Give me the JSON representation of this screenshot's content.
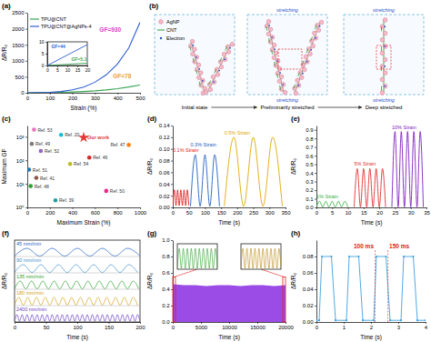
{
  "chart_data": [
    {
      "type": "line",
      "title": "(a)",
      "x_label": "Strain (%)",
      "y_label": "ΔR/R₀",
      "xlim": [
        0,
        500
      ],
      "ylim": [
        0,
        2500
      ],
      "xticks": [
        0,
        100,
        200,
        300,
        400,
        500
      ],
      "yticks": [
        0,
        500,
        1000,
        1500,
        2000,
        2500
      ],
      "legend": "upper left",
      "series": [
        {
          "name": "TPU@CNT",
          "color": "#3aa655",
          "x": [
            0,
            50,
            100,
            150,
            200,
            250,
            300,
            350,
            400,
            450,
            500
          ],
          "values": [
            0,
            3,
            8,
            15,
            25,
            40,
            60,
            90,
            130,
            180,
            240
          ]
        },
        {
          "name": "TPU@CNT@AgNPs-4",
          "color": "#2f5fd0",
          "x": [
            0,
            50,
            100,
            150,
            200,
            250,
            300,
            350,
            400,
            450,
            500
          ],
          "values": [
            0,
            5,
            15,
            40,
            90,
            180,
            330,
            560,
            900,
            1400,
            2200
          ]
        }
      ],
      "annotations": [
        {
          "text": "GF=930",
          "x": 320,
          "y": 1900,
          "color": "#e040c8"
        },
        {
          "text": "GF=78",
          "x": 380,
          "y": 450,
          "color": "#f0a030"
        }
      ]
    },
    {
      "type": "line",
      "xlim": [
        0,
        20
      ],
      "ylim": [
        0,
        10
      ],
      "xticks": [
        0,
        5,
        10,
        15,
        20
      ],
      "yticks": [
        0,
        5,
        10
      ],
      "series": [
        {
          "color": "#3aa655",
          "x": [
            0,
            5,
            10,
            15,
            20
          ],
          "values": [
            0,
            0.26,
            0.51,
            0.77,
            1.02
          ]
        },
        {
          "color": "#2f5fd0",
          "x": [
            0,
            5,
            10,
            15,
            20
          ],
          "values": [
            0,
            2.2,
            4.4,
            6.6,
            8.8
          ]
        }
      ],
      "annotations": [
        {
          "text": "GF=44",
          "x": 2,
          "y": 7.5,
          "color": "#2f5fd0"
        },
        {
          "text": "GF=5.1",
          "x": 12,
          "y": 1.8,
          "color": "#3aa655"
        }
      ]
    },
    {
      "type": "scatter",
      "title": "(c)",
      "x_label": "Maximum Strain (%)",
      "y_label": "Maximum GF",
      "log": "y",
      "xlim": [
        0,
        1000
      ],
      "ylim": [
        1,
        3000
      ],
      "xticks": [
        0,
        200,
        400,
        600,
        800,
        1000
      ],
      "yticks": [
        {
          "value": 1,
          "label": "10⁰"
        },
        {
          "value": 10,
          "label": "10¹"
        },
        {
          "value": 100,
          "label": "10²"
        },
        {
          "value": 1000,
          "label": "10³"
        }
      ],
      "series": [
        {
          "marker": "circle",
          "x": [
            60,
            300,
            40,
            120,
            900,
            550,
            380,
            15,
            80,
            30,
            700,
            250
          ],
          "values": [
            2000,
            1200,
            500,
            250,
            450,
            130,
            70,
            40,
            18,
            8,
            5,
            2
          ],
          "labels": [
            "Ref. 53",
            "Ref. 20",
            "Ref. 49",
            "Ref. 52",
            "Ref. 47",
            "Ref. 46",
            "Ref. 54",
            "Ref. 51",
            "Ref. 41",
            "Ref. 48",
            "Ref. 50",
            "Ref. 39"
          ],
          "colors": [
            "#e377c2",
            "#17becf",
            "#7f7f7f",
            "#9467bd",
            "#ff7f0e",
            "#d62728",
            "#bcbd22",
            "#1f77b4",
            "#8c564b",
            "#2ca02c",
            "#e7298a",
            "#20a0a0"
          ]
        },
        {
          "marker": "star",
          "color": "#e53935",
          "x": [
            500
          ],
          "values": [
            930
          ],
          "labels": [
            "Our work"
          ]
        }
      ]
    },
    {
      "type": "line",
      "title": "(d)",
      "x_label": "Time (s)",
      "y_label": "ΔR/R₀",
      "xlim": [
        0,
        350
      ],
      "ylim": [
        0,
        0.14
      ],
      "xticks": [
        0,
        50,
        100,
        150,
        200,
        250,
        300,
        350
      ],
      "yticks": [
        {
          "value": 0,
          "label": "0.00"
        },
        {
          "value": 0.02,
          "label": "0.02"
        },
        {
          "value": 0.04,
          "label": "0.04"
        },
        {
          "value": 0.06,
          "label": "0.06"
        },
        {
          "value": 0.08,
          "label": "0.08"
        },
        {
          "value": 0.1,
          "label": "0.10"
        },
        {
          "value": 0.12,
          "label": "0.12"
        },
        {
          "value": 0.14,
          "label": "0.14"
        }
      ],
      "series": [
        {
          "name": "0.1% Strain",
          "color": "#e02020",
          "x": [
            0,
            5,
            10,
            15,
            20,
            25,
            30,
            35,
            40,
            45,
            50
          ],
          "values": [
            0.003,
            0.03,
            0.003,
            0.03,
            0.003,
            0.03,
            0.003,
            0.03,
            0.003,
            0.03,
            0.003
          ]
        },
        {
          "name": "0.3% Strain",
          "color": "#2060c0",
          "x": [
            55,
            70,
            85,
            100,
            115,
            130,
            145
          ],
          "values": [
            0.002,
            0.09,
            0.002,
            0.09,
            0.002,
            0.09,
            0.002
          ]
        },
        {
          "name": "0.5% Strain",
          "color": "#e0a800",
          "x": [
            160,
            190,
            220,
            250,
            280,
            310,
            340
          ],
          "values": [
            0.002,
            0.12,
            0.002,
            0.12,
            0.002,
            0.12,
            0.002
          ]
        }
      ]
    },
    {
      "type": "line",
      "title": "(e)",
      "x_label": "Time (s)",
      "y_label": "ΔR/R₀",
      "xlim": [
        0,
        35
      ],
      "ylim": [
        0,
        0.95
      ],
      "xticks": [
        0,
        5,
        10,
        15,
        20,
        25,
        30,
        35
      ],
      "yticks": [
        {
          "value": 0,
          "label": "0.0"
        },
        0.1,
        0.2,
        0.3,
        0.4,
        0.5,
        0.6,
        0.7,
        0.8,
        0.9
      ],
      "series": [
        {
          "name": "1% Strain",
          "color": "#30b040",
          "x": [
            0,
            1,
            2,
            3,
            4,
            5,
            6,
            7,
            8,
            9,
            10
          ],
          "values": [
            0.005,
            0.07,
            0.005,
            0.07,
            0.005,
            0.07,
            0.005,
            0.07,
            0.005,
            0.07,
            0.005
          ]
        },
        {
          "name": "5% Strain",
          "color": "#e03030",
          "x": [
            12,
            13,
            14,
            15,
            16,
            17,
            18,
            19,
            20,
            21,
            22
          ],
          "values": [
            0.005,
            0.45,
            0.005,
            0.45,
            0.005,
            0.45,
            0.005,
            0.45,
            0.005,
            0.45,
            0.005
          ]
        },
        {
          "name": "10% Strain",
          "color": "#8020c0",
          "x": [
            24,
            25,
            26,
            27,
            28,
            29,
            30,
            31,
            32,
            33,
            34
          ],
          "values": [
            0.005,
            0.88,
            0.005,
            0.88,
            0.005,
            0.88,
            0.005,
            0.88,
            0.005,
            0.88,
            0.005
          ]
        }
      ]
    },
    {
      "type": "line",
      "title": "(f)",
      "x_label": "Time (s)",
      "y_label": "ΔR/R₀",
      "xlim": [
        0,
        200
      ],
      "ylim": [
        0,
        0.2
      ],
      "xticks": [
        0,
        50,
        100,
        150,
        200
      ],
      "tick_labels": "x",
      "series": [
        {
          "name": "45 mm/min",
          "color": "#1f5fbf",
          "x": [
            0,
            20,
            40,
            60,
            80,
            100,
            120,
            140,
            160,
            180,
            200
          ],
          "values": [
            0.005,
            0.1,
            0.005,
            0.1,
            0.005,
            0.1,
            0.005,
            0.1,
            0.005,
            0.1,
            0.005
          ]
        },
        {
          "name": "90 mm/min",
          "color": "#3a8fd0",
          "x": [
            0,
            14,
            28,
            42,
            56,
            70,
            84,
            98,
            112,
            126,
            140,
            154,
            168,
            182,
            196
          ],
          "values": [
            0.005,
            0.1,
            0.005,
            0.1,
            0.005,
            0.1,
            0.005,
            0.1,
            0.005,
            0.1,
            0.005,
            0.1,
            0.005,
            0.1,
            0.005
          ]
        },
        {
          "name": "135 mm/min",
          "color": "#2ca02c",
          "x": [
            0,
            9,
            18,
            27,
            36,
            45,
            54,
            63,
            72,
            81,
            90,
            99,
            108,
            117,
            126,
            135,
            144,
            153,
            162,
            171,
            180,
            189,
            198
          ],
          "values": [
            0.005,
            0.1,
            0.005,
            0.1,
            0.005,
            0.1,
            0.005,
            0.1,
            0.005,
            0.1,
            0.005,
            0.1,
            0.005,
            0.1,
            0.005,
            0.1,
            0.005,
            0.1,
            0.005,
            0.1,
            0.005,
            0.1,
            0.005
          ]
        },
        {
          "name": "180 mm/min",
          "color": "#d4a017",
          "x": [
            0,
            7,
            14,
            21,
            28,
            35,
            42,
            49,
            56,
            63,
            70,
            77,
            84,
            91,
            98,
            105,
            112,
            119,
            126,
            133,
            140,
            147,
            154,
            161,
            168,
            175,
            182,
            189,
            196
          ],
          "values": [
            0.005,
            0.1,
            0.005,
            0.1,
            0.005,
            0.1,
            0.005,
            0.1,
            0.005,
            0.1,
            0.005,
            0.1,
            0.005,
            0.1,
            0.005,
            0.1,
            0.005,
            0.1,
            0.005,
            0.1,
            0.005,
            0.1,
            0.005,
            0.1,
            0.005,
            0.1,
            0.005,
            0.1,
            0.005
          ]
        },
        {
          "name": "2400 mm/min",
          "color": "#6a3fc0",
          "x": [
            0,
            4,
            8,
            12,
            16,
            20,
            24,
            28,
            32,
            36,
            40,
            44,
            48,
            52,
            56,
            60,
            64,
            68,
            72,
            76,
            80,
            84,
            88,
            92,
            96,
            100,
            104,
            108,
            112,
            116,
            120,
            124,
            128,
            132,
            136,
            140,
            144,
            148,
            152,
            156,
            160,
            164,
            168,
            172,
            176,
            180,
            184,
            188,
            192,
            196,
            200
          ],
          "values": [
            0.01,
            0.09,
            0.01,
            0.09,
            0.01,
            0.09,
            0.01,
            0.09,
            0.01,
            0.09,
            0.01,
            0.09,
            0.01,
            0.09,
            0.01,
            0.09,
            0.01,
            0.09,
            0.01,
            0.09,
            0.01,
            0.09,
            0.01,
            0.09,
            0.01,
            0.09,
            0.01,
            0.09,
            0.01,
            0.09,
            0.01,
            0.09,
            0.01,
            0.09,
            0.01,
            0.09,
            0.01,
            0.09,
            0.01,
            0.09,
            0.01,
            0.09,
            0.01,
            0.09,
            0.01,
            0.09,
            0.01,
            0.09,
            0.01,
            0.09,
            0.01
          ]
        }
      ]
    },
    {
      "type": "area",
      "title": "(g)",
      "x_label": "Time (s)",
      "y_label": "ΔR/R₀",
      "xlim": [
        0,
        20000
      ],
      "ylim": [
        0,
        1.0
      ],
      "xticks": [
        0,
        5000,
        10000,
        15000,
        20000
      ],
      "yticks": [
        {
          "value": 0,
          "label": "0.0"
        },
        0.2,
        0.4,
        0.6,
        0.8,
        {
          "value": 1.0,
          "label": "1.0"
        }
      ],
      "color": "#8a2be2",
      "x": [
        0,
        2000,
        4000,
        6000,
        8000,
        10000,
        12000,
        14000,
        16000,
        18000,
        20000
      ],
      "values": [
        0.46,
        0.45,
        0.45,
        0.44,
        0.45,
        0.45,
        0.44,
        0.45,
        0.45,
        0.44,
        0.45
      ]
    },
    {
      "type": "line",
      "xlim": [
        0,
        100
      ],
      "ylim": [
        0,
        0.55
      ],
      "tick_labels": false,
      "series": [
        {
          "color": "#2ca02c",
          "x": [
            0,
            5,
            10,
            15,
            20,
            25,
            30,
            35,
            40,
            45,
            50,
            55,
            60,
            65,
            70,
            75,
            80,
            85,
            90,
            95,
            100
          ],
          "values": [
            0.02,
            0.45,
            0.02,
            0.45,
            0.02,
            0.45,
            0.02,
            0.45,
            0.02,
            0.45,
            0.02,
            0.45,
            0.02,
            0.45,
            0.02,
            0.45,
            0.02,
            0.45,
            0.02,
            0.45,
            0.02
          ]
        }
      ]
    },
    {
      "type": "line",
      "xlim": [
        19900,
        20000
      ],
      "ylim": [
        0,
        0.55
      ],
      "tick_labels": false,
      "series": [
        {
          "color": "#b8860b",
          "x": [
            19900,
            19905,
            19910,
            19915,
            19920,
            19925,
            19930,
            19935,
            19940,
            19945,
            19950,
            19955,
            19960,
            19965,
            19970,
            19975,
            19980,
            19985,
            19990,
            19995,
            20000
          ],
          "values": [
            0.02,
            0.45,
            0.02,
            0.45,
            0.02,
            0.45,
            0.02,
            0.45,
            0.02,
            0.45,
            0.02,
            0.45,
            0.02,
            0.45,
            0.02,
            0.45,
            0.02,
            0.45,
            0.02,
            0.45,
            0.02
          ]
        }
      ]
    },
    {
      "type": "line",
      "title": "(h)",
      "x_label": "Time (s)",
      "y_label": "ΔR/R₀",
      "xlim": [
        0,
        4
      ],
      "ylim": [
        0,
        0.1
      ],
      "xticks": [
        0,
        1,
        2,
        3,
        4
      ],
      "yticks": [
        {
          "value": 0,
          "label": "0.00"
        },
        {
          "value": 0.02,
          "label": "0.02"
        },
        {
          "value": 0.04,
          "label": "0.04"
        },
        {
          "value": 0.06,
          "label": "0.06"
        },
        {
          "value": 0.08,
          "label": "0.08"
        }
      ],
      "series": [
        {
          "color": "#40a0e0",
          "marker": "circle",
          "x": [
            0,
            0.1,
            0.2,
            0.55,
            0.7,
            1.1,
            1.2,
            1.55,
            1.7,
            2.1,
            2.2,
            2.55,
            2.7,
            3.1,
            3.2,
            3.55,
            3.7,
            4.0
          ],
          "values": [
            0.002,
            0.002,
            0.08,
            0.08,
            0.002,
            0.002,
            0.08,
            0.08,
            0.002,
            0.002,
            0.08,
            0.08,
            0.002,
            0.002,
            0.08,
            0.08,
            0.002,
            0.002
          ]
        }
      ],
      "annotations": [
        {
          "text": "100 ms",
          "x": 2.15,
          "y": 0.09,
          "color": "#e02020"
        },
        {
          "text": "150 ms",
          "x": 2.62,
          "y": 0.09,
          "color": "#e02020"
        }
      ]
    }
  ],
  "diagram": {
    "title": "(b)",
    "key": [
      "AgNP",
      "CNT",
      "Electron"
    ],
    "states": [
      "Initial state",
      "Preliminarily stretched",
      "Deep stretched"
    ],
    "stretching": [
      "stretching",
      "stretching",
      "stretching",
      "stretching"
    ]
  }
}
